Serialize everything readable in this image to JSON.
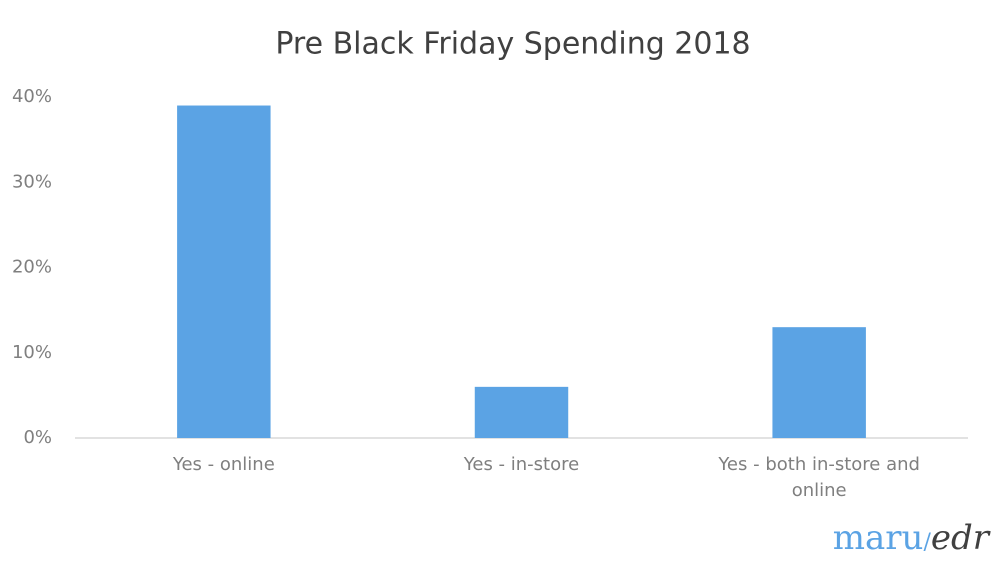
{
  "chart_data": {
    "type": "bar",
    "title": "Pre Black Friday Spending 2018",
    "categories": [
      "Yes - online",
      "Yes - in-store",
      "Yes - both in-store and online"
    ],
    "values": [
      39,
      6,
      13
    ],
    "color": "#5ba3e4",
    "ylim": [
      0,
      40
    ],
    "yticks": [
      {
        "value": 0,
        "label": "0%"
      },
      {
        "value": 10,
        "label": "10%"
      },
      {
        "value": 20,
        "label": "20%"
      },
      {
        "value": 30,
        "label": "30%"
      },
      {
        "value": 40,
        "label": "40%"
      }
    ],
    "grid": false
  },
  "brand": [
    "maru",
    "/",
    "edr"
  ]
}
